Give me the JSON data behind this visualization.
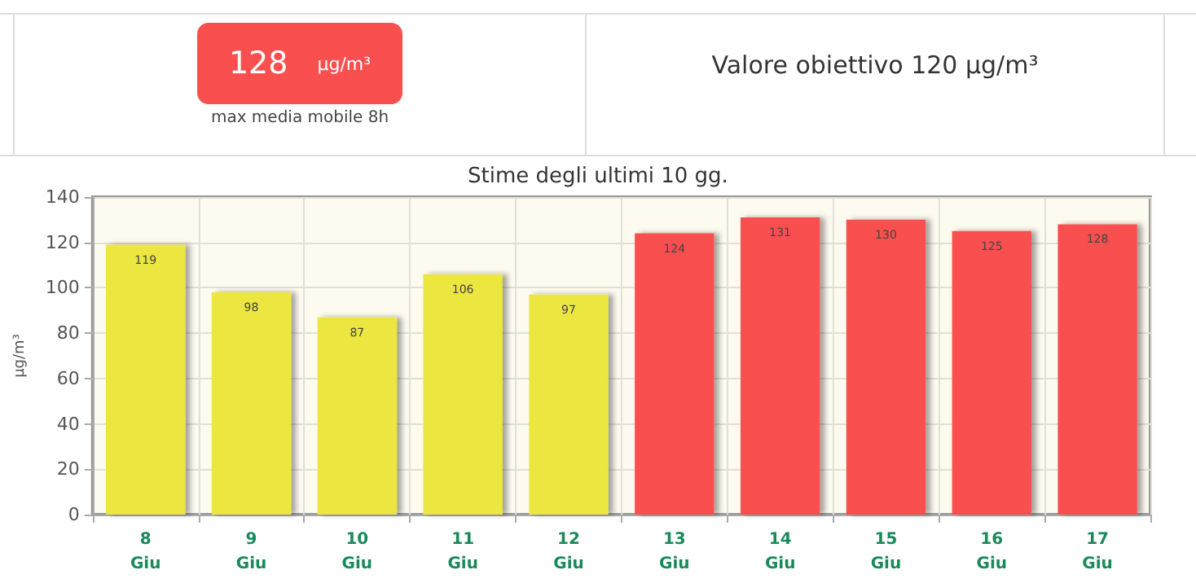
{
  "chart_data": [
    {
      "type": "other",
      "annotations": [
        "128",
        "µg/m³",
        "max media mobile 8h",
        "Valore obiettivo 120 µg/m³"
      ]
    },
    {
      "type": "bar",
      "title": "Stime degli ultimi 10 gg.",
      "ylabel": "µg/m³",
      "categories": [
        "8\nGiu",
        "9\nGiu",
        "10\nGiu",
        "11\nGiu",
        "12\nGiu",
        "13\nGiu",
        "14\nGiu",
        "15\nGiu",
        "16\nGiu",
        "17\nGiu"
      ],
      "values": [
        119,
        98,
        87,
        106,
        97,
        124,
        131,
        130,
        125,
        128
      ],
      "colors": [
        "#ece63f",
        "#ece63f",
        "#ece63f",
        "#ece63f",
        "#ece63f",
        "#f94f4f",
        "#f94f4f",
        "#f94f4f",
        "#f94f4f",
        "#f94f4f"
      ],
      "ylim": [
        0,
        140
      ],
      "yticks": [
        0,
        20,
        40,
        60,
        80,
        100,
        120,
        140
      ],
      "grid": true,
      "data_labels": true
    }
  ]
}
